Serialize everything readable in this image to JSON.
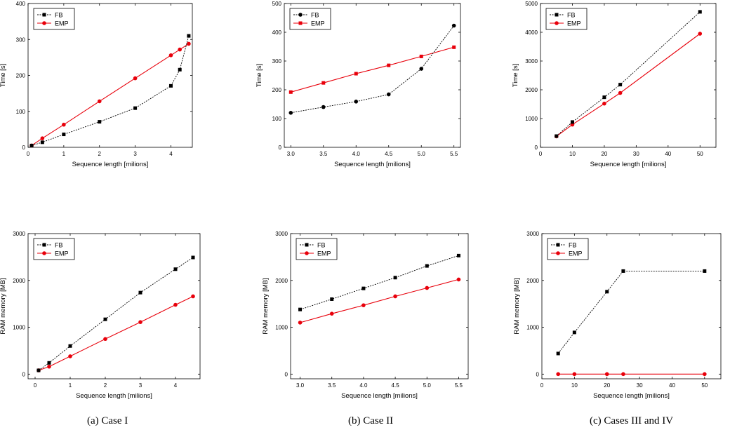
{
  "captions": [
    "(a) Case I",
    "(b) Case II",
    "(c) Cases III and IV"
  ],
  "colors": {
    "fb": "#000000",
    "emp": "#e8000b"
  },
  "chart_data": [
    {
      "type": "line",
      "xlabel": "Sequence length [milions]",
      "ylabel": "Time [s]",
      "xlim": [
        0,
        4.6
      ],
      "ylim": [
        0,
        400
      ],
      "xticks": [
        0,
        1,
        2,
        3,
        4
      ],
      "yticks": [
        0,
        100,
        200,
        300,
        400
      ],
      "legend": "top-left",
      "series": [
        {
          "name": "FB",
          "style": "dotted",
          "marker": "square",
          "x": [
            0.1,
            0.4,
            1,
            2,
            3,
            4,
            4.25,
            4.5
          ],
          "y": [
            5,
            14,
            36,
            71,
            109,
            171,
            216,
            310
          ]
        },
        {
          "name": "EMP",
          "style": "solid",
          "marker": "circle",
          "x": [
            0.1,
            0.4,
            1,
            2,
            3,
            4,
            4.25,
            4.5
          ],
          "y": [
            5,
            25,
            63,
            128,
            192,
            256,
            272,
            288
          ]
        }
      ]
    },
    {
      "type": "line",
      "xlabel": "Sequence length [milions]",
      "ylabel": "Time [s]",
      "xlim": [
        2.9,
        5.6
      ],
      "ylim": [
        0,
        500
      ],
      "xticks": [
        3.0,
        3.5,
        4.0,
        4.5,
        5.0,
        5.5
      ],
      "xtickdecimals": 1,
      "yticks": [
        0,
        100,
        200,
        300,
        400,
        500
      ],
      "legend": "top-left",
      "series": [
        {
          "name": "FB",
          "style": "dotted",
          "marker": "circle",
          "x": [
            3.0,
            3.5,
            4.0,
            4.5,
            5.0,
            5.5
          ],
          "y": [
            120,
            140,
            159,
            184,
            273,
            423
          ]
        },
        {
          "name": "EMP",
          "style": "solid",
          "marker": "square",
          "x": [
            3.0,
            3.5,
            4.0,
            4.5,
            5.0,
            5.5
          ],
          "y": [
            192,
            224,
            256,
            285,
            316,
            348
          ]
        }
      ]
    },
    {
      "type": "line",
      "xlabel": "Sequence length [milions]",
      "ylabel": "Time [s]",
      "xlim": [
        0,
        55
      ],
      "ylim": [
        0,
        5000
      ],
      "xticks": [
        0,
        10,
        20,
        30,
        40,
        50
      ],
      "yticks": [
        0,
        1000,
        2000,
        3000,
        4000,
        5000
      ],
      "legend": "top-left",
      "series": [
        {
          "name": "FB",
          "style": "dotted",
          "marker": "square",
          "x": [
            5,
            10,
            20,
            25,
            50
          ],
          "y": [
            390,
            880,
            1740,
            2180,
            4710
          ]
        },
        {
          "name": "EMP",
          "style": "solid",
          "marker": "circle",
          "x": [
            5,
            10,
            20,
            25,
            50
          ],
          "y": [
            380,
            790,
            1520,
            1890,
            3950
          ]
        }
      ]
    },
    {
      "type": "line",
      "xlabel": "Sequence length [milions]",
      "ylabel": "RAM memory [MB]",
      "xlim": [
        -0.2,
        4.7
      ],
      "ylim": [
        -100,
        3000
      ],
      "xticks": [
        0,
        1,
        2,
        3,
        4
      ],
      "yticks": [
        0,
        1000,
        2000,
        3000
      ],
      "legend": "top-left",
      "series": [
        {
          "name": "FB",
          "style": "dotted",
          "marker": "square",
          "x": [
            0.1,
            0.4,
            1,
            2,
            3,
            4,
            4.5
          ],
          "y": [
            80,
            240,
            600,
            1170,
            1740,
            2240,
            2490
          ]
        },
        {
          "name": "EMP",
          "style": "solid",
          "marker": "circle",
          "x": [
            0.1,
            0.4,
            1,
            2,
            3,
            4,
            4.5
          ],
          "y": [
            80,
            160,
            380,
            750,
            1110,
            1480,
            1660
          ]
        }
      ]
    },
    {
      "type": "line",
      "xlabel": "Sequence length [milions]",
      "ylabel": "RAM memory [MB]",
      "xlim": [
        2.85,
        5.65
      ],
      "ylim": [
        -100,
        3000
      ],
      "xticks": [
        3.0,
        3.5,
        4.0,
        4.5,
        5.0,
        5.5
      ],
      "xtickdecimals": 1,
      "yticks": [
        0,
        1000,
        2000,
        3000
      ],
      "legend": "top-left",
      "series": [
        {
          "name": "FB",
          "style": "dotted",
          "marker": "square",
          "x": [
            3.0,
            3.5,
            4.0,
            4.5,
            5.0,
            5.5
          ],
          "y": [
            1380,
            1600,
            1830,
            2060,
            2310,
            2530
          ]
        },
        {
          "name": "EMP",
          "style": "solid",
          "marker": "circle",
          "x": [
            3.0,
            3.5,
            4.0,
            4.5,
            5.0,
            5.5
          ],
          "y": [
            1100,
            1290,
            1470,
            1660,
            1840,
            2020
          ]
        }
      ]
    },
    {
      "type": "line",
      "xlabel": "Sequence length [milions]",
      "ylabel": "RAM memory [MB]",
      "xlim": [
        0,
        55
      ],
      "ylim": [
        -100,
        3000
      ],
      "xticks": [
        0,
        10,
        20,
        30,
        40,
        50
      ],
      "yticks": [
        0,
        1000,
        2000,
        3000
      ],
      "legend": "top-left",
      "series": [
        {
          "name": "FB",
          "style": "dotted",
          "marker": "square",
          "x": [
            5,
            10,
            20,
            25,
            50
          ],
          "y": [
            440,
            890,
            1760,
            2200,
            2200
          ]
        },
        {
          "name": "EMP",
          "style": "solid",
          "marker": "circle",
          "x": [
            5,
            10,
            20,
            25,
            50
          ],
          "y": [
            0,
            0,
            0,
            0,
            0
          ]
        }
      ]
    }
  ]
}
